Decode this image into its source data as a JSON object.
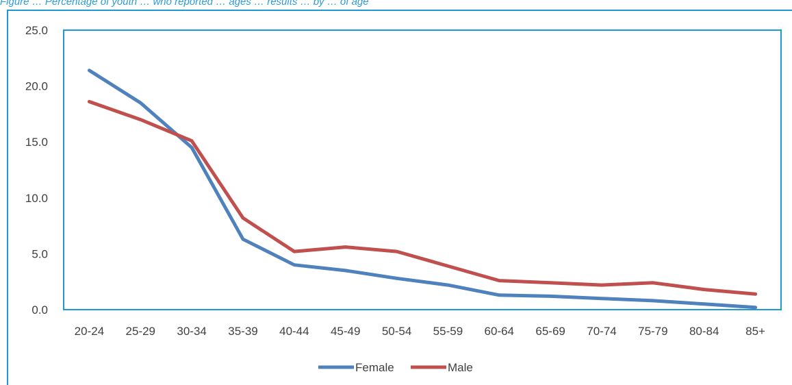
{
  "caption": "Figure … Percentage of youth … who reported … ages … results … by … of age",
  "chart_data": {
    "type": "line",
    "title": "",
    "xlabel": "",
    "ylabel": "",
    "categories": [
      "20-24",
      "25-29",
      "30-34",
      "35-39",
      "40-44",
      "45-49",
      "50-54",
      "55-59",
      "60-64",
      "65-69",
      "70-74",
      "75-79",
      "80-84",
      "85+"
    ],
    "ylim": [
      0,
      25
    ],
    "yticks": [
      "0.0",
      "5.0",
      "10.0",
      "15.0",
      "20.0",
      "25.0"
    ],
    "grid": false,
    "legend_position": "bottom",
    "series": [
      {
        "name": "Female",
        "color": "#4f81bd",
        "values": [
          21.4,
          18.5,
          14.5,
          6.3,
          4.0,
          3.5,
          2.8,
          2.2,
          1.3,
          1.2,
          1.0,
          0.8,
          0.5,
          0.2
        ]
      },
      {
        "name": "Male",
        "color": "#c0504d",
        "values": [
          18.6,
          17.0,
          15.1,
          8.2,
          5.2,
          5.6,
          5.2,
          3.9,
          2.6,
          2.4,
          2.2,
          2.4,
          1.8,
          1.4
        ]
      }
    ]
  }
}
